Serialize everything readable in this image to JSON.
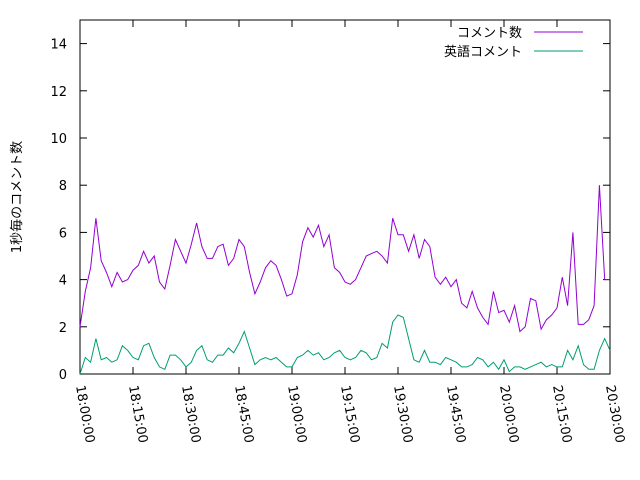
{
  "chart_data": {
    "type": "line",
    "ylabel": "1秒毎のコメント数",
    "ylim": [
      0,
      15
    ],
    "yticks": [
      0,
      2,
      4,
      6,
      8,
      10,
      12,
      14
    ],
    "xlim": [
      "18:00:00",
      "20:30:00"
    ],
    "xticks": [
      "18:00:00",
      "18:15:00",
      "18:30:00",
      "18:45:00",
      "19:00:00",
      "19:15:00",
      "19:30:00",
      "19:45:00",
      "20:00:00",
      "20:15:00",
      "20:30:00"
    ],
    "grid": false,
    "legend_position": "top-right",
    "x": [
      "18:00:00",
      "18:01:30",
      "18:03:00",
      "18:04:30",
      "18:06:00",
      "18:07:30",
      "18:09:00",
      "18:10:30",
      "18:12:00",
      "18:13:30",
      "18:15:00",
      "18:16:30",
      "18:18:00",
      "18:19:30",
      "18:21:00",
      "18:22:30",
      "18:24:00",
      "18:25:30",
      "18:27:00",
      "18:28:30",
      "18:30:00",
      "18:31:30",
      "18:33:00",
      "18:34:30",
      "18:36:00",
      "18:37:30",
      "18:39:00",
      "18:40:30",
      "18:42:00",
      "18:43:30",
      "18:45:00",
      "18:46:30",
      "18:48:00",
      "18:49:30",
      "18:51:00",
      "18:52:30",
      "18:54:00",
      "18:55:30",
      "18:57:00",
      "18:58:30",
      "19:00:00",
      "19:01:30",
      "19:03:00",
      "19:04:30",
      "19:06:00",
      "19:07:30",
      "19:09:00",
      "19:10:30",
      "19:12:00",
      "19:13:30",
      "19:15:00",
      "19:16:30",
      "19:18:00",
      "19:19:30",
      "19:21:00",
      "19:22:30",
      "19:24:00",
      "19:25:30",
      "19:27:00",
      "19:28:30",
      "19:30:00",
      "19:31:30",
      "19:33:00",
      "19:34:30",
      "19:36:00",
      "19:37:30",
      "19:39:00",
      "19:40:30",
      "19:42:00",
      "19:43:30",
      "19:45:00",
      "19:46:30",
      "19:48:00",
      "19:49:30",
      "19:51:00",
      "19:52:30",
      "19:54:00",
      "19:55:30",
      "19:57:00",
      "19:58:30",
      "20:00:00",
      "20:01:30",
      "20:03:00",
      "20:04:30",
      "20:06:00",
      "20:07:30",
      "20:09:00",
      "20:10:30",
      "20:12:00",
      "20:13:30",
      "20:15:00",
      "20:16:30",
      "20:18:00",
      "20:19:30",
      "20:21:00",
      "20:22:30",
      "20:24:00",
      "20:25:30",
      "20:27:00",
      "20:28:30",
      "20:30:00"
    ],
    "series": [
      {
        "name": "コメント数",
        "color": "#9400d3",
        "values": [
          2.0,
          3.5,
          4.5,
          6.6,
          4.8,
          4.3,
          3.7,
          4.3,
          3.9,
          4.0,
          4.4,
          4.6,
          5.2,
          4.7,
          5.0,
          3.9,
          3.6,
          4.6,
          5.7,
          5.2,
          4.7,
          5.5,
          6.4,
          5.4,
          4.9,
          4.9,
          5.4,
          5.5,
          4.6,
          4.9,
          5.7,
          5.4,
          4.3,
          3.4,
          3.9,
          4.5,
          4.8,
          4.6,
          4.0,
          3.3,
          3.4,
          4.2,
          5.6,
          6.2,
          5.8,
          6.3,
          5.4,
          5.9,
          4.5,
          4.3,
          3.9,
          3.8,
          4.0,
          4.5,
          5.0,
          5.1,
          5.2,
          5.0,
          4.7,
          6.6,
          5.9,
          5.9,
          5.2,
          5.9,
          4.9,
          5.7,
          5.4,
          4.1,
          3.8,
          4.1,
          3.7,
          4.0,
          3.0,
          2.8,
          3.5,
          2.8,
          2.4,
          2.1,
          3.5,
          2.6,
          2.7,
          2.2,
          2.9,
          1.8,
          2.0,
          3.2,
          3.1,
          1.9,
          2.3,
          2.5,
          2.8,
          4.1,
          2.9,
          6.0,
          2.1,
          2.1,
          2.3,
          2.9,
          8.0,
          4.0,
          4.0
        ]
      },
      {
        "name": "英語コメント",
        "color": "#009e73",
        "values": [
          0.0,
          0.7,
          0.5,
          1.5,
          0.6,
          0.7,
          0.5,
          0.6,
          1.2,
          1.0,
          0.7,
          0.6,
          1.2,
          1.3,
          0.7,
          0.3,
          0.2,
          0.8,
          0.8,
          0.6,
          0.3,
          0.5,
          1.0,
          1.2,
          0.6,
          0.5,
          0.8,
          0.8,
          1.1,
          0.9,
          1.3,
          1.8,
          1.1,
          0.4,
          0.6,
          0.7,
          0.6,
          0.7,
          0.5,
          0.3,
          0.3,
          0.7,
          0.8,
          1.0,
          0.8,
          0.9,
          0.6,
          0.7,
          0.9,
          1.0,
          0.7,
          0.6,
          0.7,
          1.0,
          0.9,
          0.6,
          0.7,
          1.3,
          1.1,
          2.2,
          2.5,
          2.4,
          1.5,
          0.6,
          0.5,
          1.0,
          0.5,
          0.5,
          0.4,
          0.7,
          0.6,
          0.5,
          0.3,
          0.3,
          0.4,
          0.7,
          0.6,
          0.3,
          0.5,
          0.2,
          0.6,
          0.1,
          0.3,
          0.3,
          0.2,
          0.3,
          0.4,
          0.5,
          0.3,
          0.4,
          0.3,
          0.3,
          1.0,
          0.6,
          1.2,
          0.4,
          0.2,
          0.2,
          1.0,
          1.5,
          1.0
        ]
      }
    ]
  }
}
